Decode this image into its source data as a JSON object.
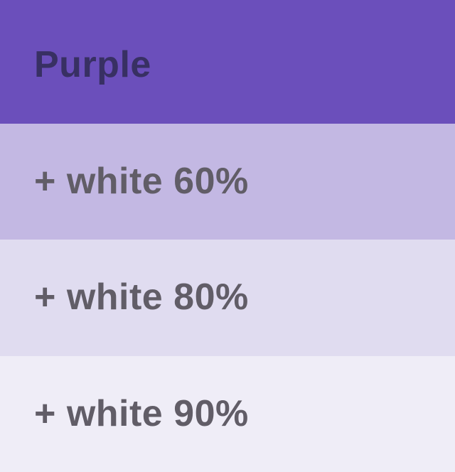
{
  "palette": {
    "name": "Purple",
    "base_color": "#6b4fbb",
    "title_text_color": "#383063",
    "tint_label_text_color": "#615d67",
    "swatches": [
      {
        "label": "Purple",
        "background": "#6b4fbb",
        "text_color": "#383063",
        "role": "base-color"
      },
      {
        "label": "+ white 60%",
        "background": "#c3b8e3",
        "text_color": "#615d67",
        "role": "tint-60"
      },
      {
        "label": "+ white 80%",
        "background": "#e0dcf0",
        "text_color": "#615d67",
        "role": "tint-80"
      },
      {
        "label": "+ white 90%",
        "background": "#efedf7",
        "text_color": "#615d67",
        "role": "tint-90"
      }
    ]
  }
}
